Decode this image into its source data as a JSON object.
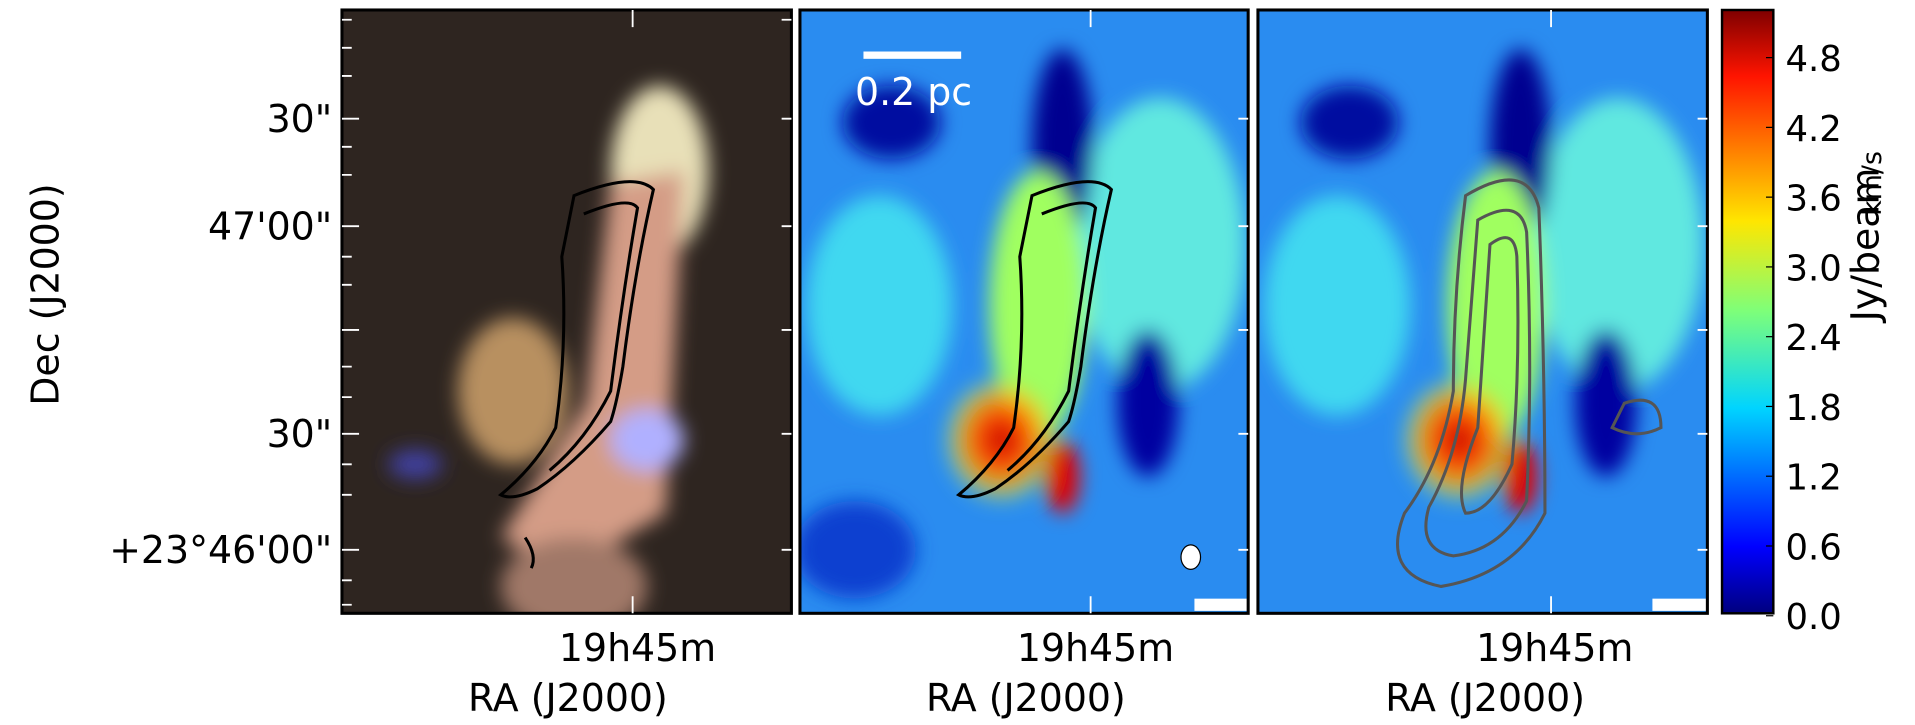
{
  "y_axis": {
    "title": "Dec (J2000)",
    "tick_labels": [
      "30\"",
      "47'00\"",
      "30\"",
      "+23°46'00\""
    ]
  },
  "panels": [
    {
      "x_tick_label": "19h45m",
      "x_title": "RA (J2000)"
    },
    {
      "x_tick_label": "19h45m",
      "x_title": "RA (J2000)",
      "scale_bar_label": "0.2 pc"
    },
    {
      "x_tick_label": "19h45m",
      "x_title": "RA (J2000)"
    }
  ],
  "colorbar": {
    "title": "Jy/beam",
    "unit": "km/s",
    "tick_labels": [
      "4.8",
      "4.2",
      "3.6",
      "3.0",
      "2.4",
      "1.8",
      "1.2",
      "0.6",
      "0.0"
    ]
  }
}
